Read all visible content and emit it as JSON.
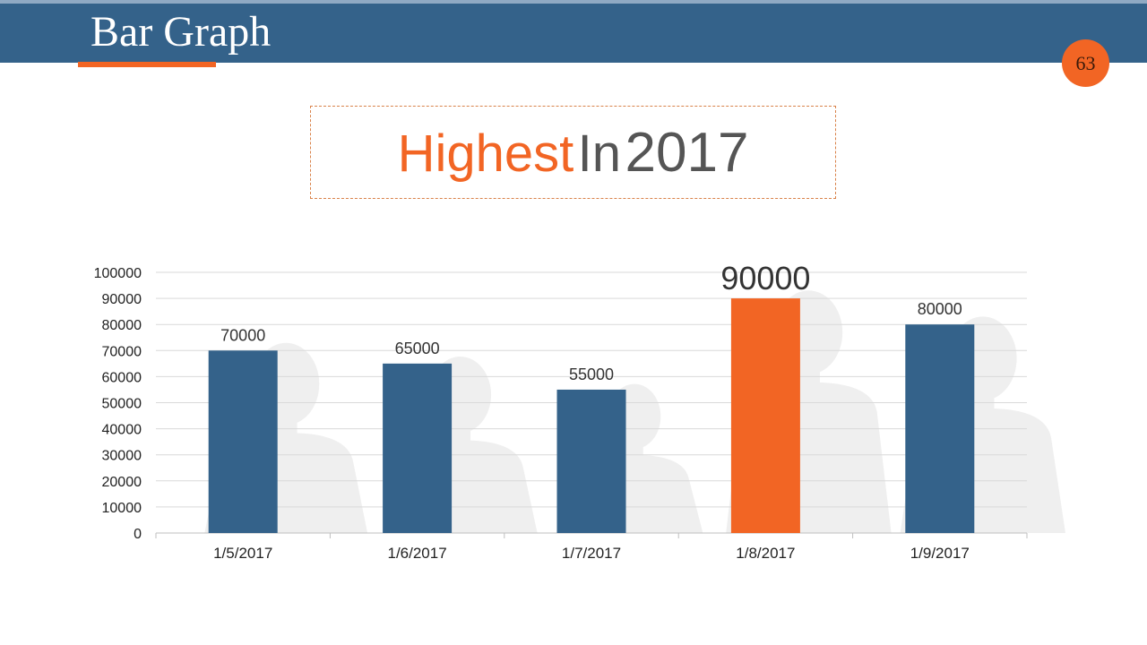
{
  "slide": {
    "title": "Bar Graph",
    "page_number": "63"
  },
  "headline": {
    "highlight": "Highest",
    "middle": "In",
    "year": "2017"
  },
  "colors": {
    "header": "#34628a",
    "accent": "#f26524",
    "bar": "#34628a",
    "highlight_bar": "#f26524",
    "silhouette": "#efefef",
    "grid": "#d9d9d9"
  },
  "chart_data": {
    "type": "bar",
    "categories": [
      "1/5/2017",
      "1/6/2017",
      "1/7/2017",
      "1/8/2017",
      "1/9/2017"
    ],
    "values": [
      70000,
      65000,
      55000,
      90000,
      80000
    ],
    "data_labels": [
      "70000",
      "65000",
      "55000",
      "90000",
      "80000"
    ],
    "highlight_index": 3,
    "ylim": [
      0,
      100000
    ],
    "yticks": [
      0,
      10000,
      20000,
      30000,
      40000,
      50000,
      60000,
      70000,
      80000,
      90000,
      100000
    ],
    "ytick_labels": [
      "0",
      "10000",
      "20000",
      "30000",
      "40000",
      "50000",
      "60000",
      "70000",
      "80000",
      "90000",
      "100000"
    ],
    "grid": true,
    "legend": "none",
    "decoration": "person-silhouette-icons"
  }
}
